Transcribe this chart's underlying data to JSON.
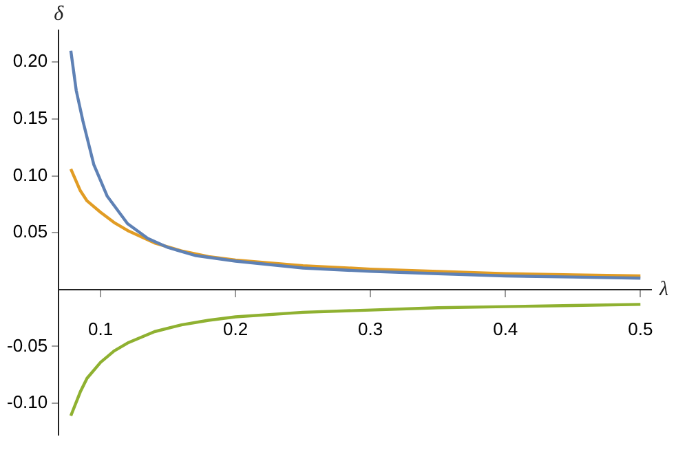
{
  "chart_data": {
    "type": "line",
    "xlabel": "λ",
    "ylabel": "δ",
    "xlim": [
      0.069,
      0.508
    ],
    "ylim": [
      -0.128,
      0.228
    ],
    "xticks": [
      0.1,
      0.2,
      0.3,
      0.4,
      0.5
    ],
    "yticks": [
      {
        "value": -0.1,
        "label": "-0.10"
      },
      -0.05,
      0.05,
      {
        "value": 0.1,
        "label": "0.10"
      },
      {
        "value": 0.15,
        "label": "0.15"
      },
      {
        "value": 0.2,
        "label": "0.20"
      }
    ],
    "grid": false,
    "legend": false,
    "marker": "none",
    "line_style": "solid",
    "series": [
      {
        "color": "#5e81b5",
        "x": [
          0.078,
          0.082,
          0.087,
          0.095,
          0.105,
          0.12,
          0.135,
          0.15,
          0.17,
          0.2,
          0.25,
          0.3,
          0.35,
          0.4,
          0.45,
          0.5
        ],
        "values": [
          0.21,
          0.175,
          0.148,
          0.11,
          0.082,
          0.058,
          0.045,
          0.037,
          0.03,
          0.025,
          0.019,
          0.016,
          0.014,
          0.012,
          0.011,
          0.01
        ]
      },
      {
        "color": "#e19c24",
        "x": [
          0.078,
          0.085,
          0.09,
          0.1,
          0.11,
          0.12,
          0.14,
          0.16,
          0.18,
          0.2,
          0.25,
          0.3,
          0.35,
          0.4,
          0.45,
          0.5
        ],
        "values": [
          0.106,
          0.087,
          0.078,
          0.068,
          0.059,
          0.052,
          0.041,
          0.034,
          0.029,
          0.026,
          0.021,
          0.018,
          0.016,
          0.014,
          0.013,
          0.012
        ]
      },
      {
        "color": "#8fb131",
        "x": [
          0.078,
          0.085,
          0.09,
          0.1,
          0.11,
          0.12,
          0.14,
          0.16,
          0.18,
          0.2,
          0.25,
          0.3,
          0.35,
          0.4,
          0.45,
          0.5
        ],
        "values": [
          -0.111,
          -0.09,
          -0.078,
          -0.064,
          -0.054,
          -0.047,
          -0.037,
          -0.031,
          -0.027,
          -0.024,
          -0.02,
          -0.018,
          -0.016,
          -0.015,
          -0.014,
          -0.013
        ]
      }
    ]
  }
}
